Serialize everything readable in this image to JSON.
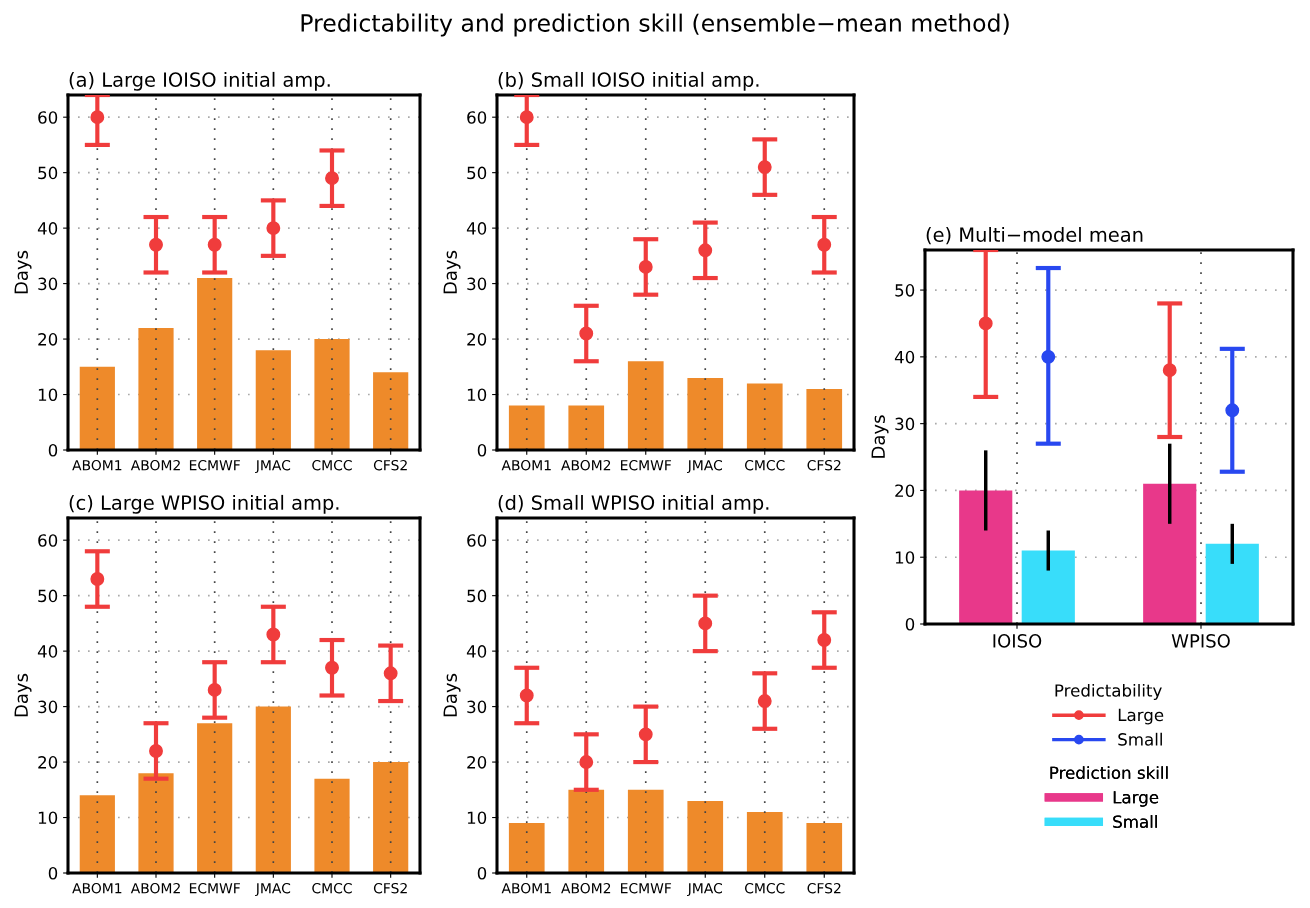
{
  "chart_data": [
    {
      "type": "bar",
      "title": "(a) Large IOISO initial amp.",
      "ylabel": "Days",
      "annotations": [
        "Predictability and prediction skill (ensemble−mean method)"
      ],
      "categories": [
        "ABOM1",
        "ABOM2",
        "ECMWF",
        "JMAC",
        "CMCC",
        "CFS2"
      ],
      "ylim": [
        0,
        64
      ],
      "yticks": [
        0,
        10,
        20,
        30,
        40,
        50,
        60
      ],
      "grid": true,
      "marker": "circle",
      "series": [
        {
          "color": "#ee8a2a",
          "values": [
            15,
            22,
            31,
            18,
            20,
            14
          ]
        },
        {
          "type": "scatter",
          "color": "#f03c3c",
          "x": [
            "ABOM1",
            "ABOM2",
            "ECMWF",
            "JMAC",
            "CMCC",
            "CFS2"
          ],
          "values": [
            60,
            37,
            37,
            40,
            49,
            null
          ],
          "errors": [
            [
              55,
              64
            ],
            5,
            5,
            5,
            5,
            null
          ]
        }
      ]
    },
    {
      "type": "bar",
      "title": "(b) Small IOISO initial amp.",
      "ylabel": "Days",
      "categories": [
        "ABOM1",
        "ABOM2",
        "ECMWF",
        "JMAC",
        "CMCC",
        "CFS2"
      ],
      "ylim": [
        0,
        64
      ],
      "yticks": [
        0,
        10,
        20,
        30,
        40,
        50,
        60
      ],
      "grid": true,
      "marker": "circle",
      "series": [
        {
          "color": "#ee8a2a",
          "values": [
            8,
            8,
            16,
            13,
            12,
            11
          ]
        },
        {
          "type": "scatter",
          "color": "#f03c3c",
          "x": [
            "ABOM1",
            "ABOM2",
            "ECMWF",
            "JMAC",
            "CMCC",
            "CFS2"
          ],
          "values": [
            60,
            21,
            33,
            36,
            51,
            37
          ],
          "errors": [
            [
              55,
              64
            ],
            5,
            5,
            5,
            5,
            5
          ]
        }
      ]
    },
    {
      "type": "bar",
      "title": "(c) Large WPISO initial amp.",
      "ylabel": "Days",
      "categories": [
        "ABOM1",
        "ABOM2",
        "ECMWF",
        "JMAC",
        "CMCC",
        "CFS2"
      ],
      "ylim": [
        0,
        64
      ],
      "yticks": [
        0,
        10,
        20,
        30,
        40,
        50,
        60
      ],
      "grid": true,
      "marker": "circle",
      "series": [
        {
          "color": "#ee8a2a",
          "values": [
            14,
            18,
            27,
            30,
            17,
            20
          ]
        },
        {
          "type": "scatter",
          "color": "#f03c3c",
          "x": [
            "ABOM1",
            "ABOM2",
            "ECMWF",
            "JMAC",
            "CMCC",
            "CFS2"
          ],
          "values": [
            53,
            22,
            33,
            43,
            37,
            36
          ],
          "errors": [
            5,
            5,
            5,
            5,
            5,
            5
          ]
        }
      ]
    },
    {
      "type": "bar",
      "title": "(d) Small WPISO initial amp.",
      "ylabel": "Days",
      "categories": [
        "ABOM1",
        "ABOM2",
        "ECMWF",
        "JMAC",
        "CMCC",
        "CFS2"
      ],
      "ylim": [
        0,
        64
      ],
      "yticks": [
        0,
        10,
        20,
        30,
        40,
        50,
        60
      ],
      "grid": true,
      "marker": "circle",
      "series": [
        {
          "color": "#ee8a2a",
          "values": [
            9,
            15,
            15,
            13,
            11,
            9
          ]
        },
        {
          "type": "scatter",
          "color": "#f03c3c",
          "x": [
            "ABOM1",
            "ABOM2",
            "ECMWF",
            "JMAC",
            "CMCC",
            "CFS2"
          ],
          "values": [
            32,
            20,
            25,
            45,
            31,
            42
          ],
          "errors": [
            5,
            5,
            5,
            5,
            5,
            5
          ]
        }
      ]
    },
    {
      "type": "bar",
      "title": "(e) Multi−model mean",
      "ylabel": "Days",
      "categories": [
        "IOISO",
        "WPISO"
      ],
      "ylim": [
        0,
        56
      ],
      "yticks": [
        0,
        10,
        20,
        30,
        40,
        50
      ],
      "grid": true,
      "marker": "circle",
      "legend": "bottom",
      "legend_title": [
        "Predictability",
        "Prediction skill"
      ],
      "series": [
        {
          "name": "Large",
          "color": "#e8388a",
          "values": [
            20,
            21
          ],
          "errors": [
            6,
            6
          ]
        },
        {
          "name": "Small",
          "color": "#38ddfa",
          "values": [
            11,
            12
          ],
          "errors": [
            3,
            3
          ]
        },
        {
          "type": "scatter",
          "name": "Large",
          "color": "#f03c3c",
          "x": [
            "IOISO",
            "WPISO"
          ],
          "values": [
            45,
            38
          ],
          "errors": [
            11,
            10
          ]
        },
        {
          "type": "scatter",
          "name": "Small",
          "color": "#2848f0",
          "x": [
            "IOISO",
            "WPISO"
          ],
          "values": [
            40,
            32
          ],
          "errors": [
            [
              27,
              53.3
            ],
            [
              22.8,
              41.2
            ]
          ]
        }
      ]
    }
  ]
}
